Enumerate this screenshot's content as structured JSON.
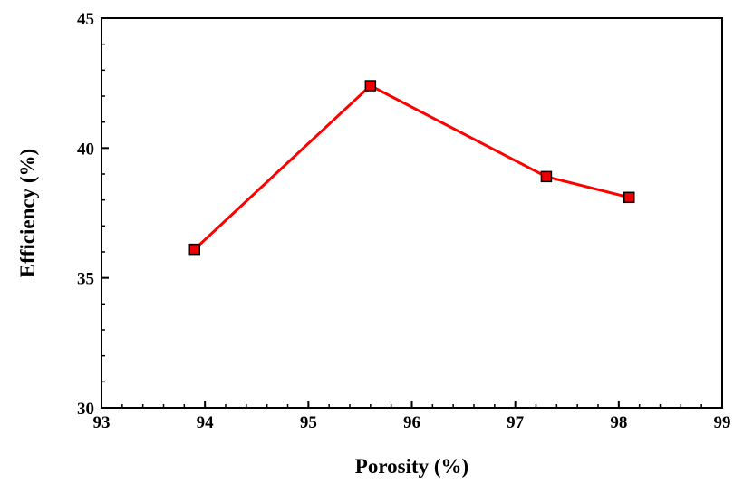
{
  "chart_data": {
    "type": "line",
    "title": "",
    "xlabel": "Porosity (%)",
    "ylabel": "Efficiency (%)",
    "xlim": [
      93,
      99
    ],
    "ylim": [
      30,
      45
    ],
    "xticks": [
      93,
      94,
      95,
      96,
      97,
      98,
      99
    ],
    "yticks": [
      30,
      35,
      40,
      45
    ],
    "x_minor_step": 0.2,
    "y_minor_step": 1,
    "grid": false,
    "legend": "none",
    "series": [
      {
        "x": [
          93.9,
          95.6,
          97.3,
          98.1
        ],
        "y": [
          36.1,
          42.4,
          38.9,
          38.1
        ],
        "line_color": "#ff0000",
        "marker": "square",
        "marker_fill": "#ee0000",
        "marker_edge": "#000000"
      }
    ]
  }
}
